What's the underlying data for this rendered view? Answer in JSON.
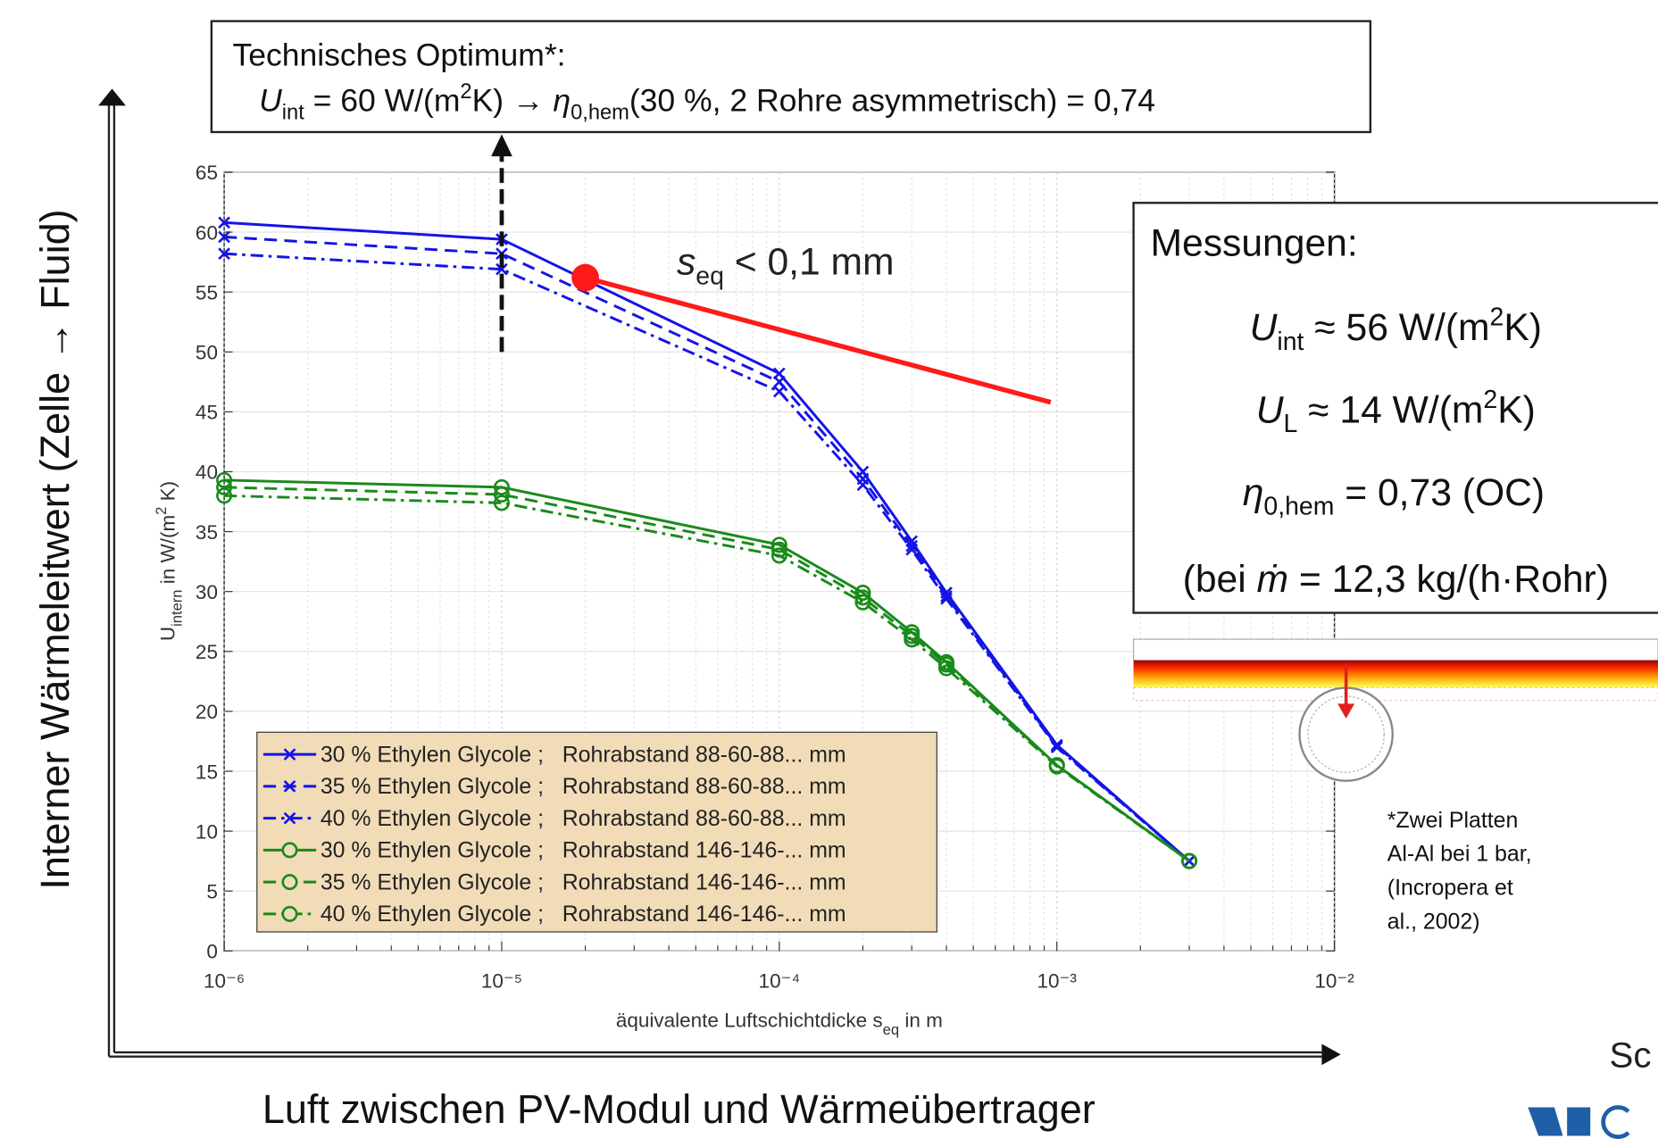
{
  "chart_data": {
    "type": "line",
    "x_scale": "log",
    "grid": true,
    "legend_position": "lower left",
    "legend_color": "#f2dcb8",
    "x_label": [
      "äquivalente Luftschichtdicke s",
      "eq",
      " in m"
    ],
    "y_label": [
      "U",
      "intern",
      " in W/(m",
      "2",
      " K)"
    ],
    "xlim": [
      1e-06,
      0.01
    ],
    "xticks": [
      {
        "value": 1e-06,
        "label": "10⁻⁶"
      },
      {
        "value": 1e-05,
        "label": "10⁻⁵"
      },
      {
        "value": 0.0001,
        "label": "10⁻⁴"
      },
      {
        "value": 0.001,
        "label": "10⁻³"
      },
      {
        "value": 0.01,
        "label": "10⁻²"
      }
    ],
    "ylim": [
      0,
      65
    ],
    "yticks": [
      0,
      5,
      10,
      15,
      20,
      25,
      30,
      35,
      40,
      45,
      50,
      55,
      60,
      65
    ],
    "x": [
      1e-06,
      1e-05,
      0.0001,
      0.0002,
      0.0003,
      0.0004,
      0.001,
      0.003
    ],
    "series": [
      {
        "name": "30 % Ethylen Glycole ;   Rohrabstand 88-60-88... mm",
        "color": "#1414e6",
        "dash": "solid",
        "marker": "x",
        "values": [
          60.8,
          59.4,
          48.2,
          40.0,
          34.2,
          29.9,
          17.2,
          7.5
        ]
      },
      {
        "name": "35 % Ethylen Glycole ;   Rohrabstand 88-60-88... mm",
        "color": "#1414e6",
        "dash": "dashed",
        "marker": "x",
        "values": [
          59.6,
          58.2,
          47.5,
          39.4,
          33.8,
          29.6,
          17.1,
          7.5
        ]
      },
      {
        "name": "40 % Ethylen Glycole ;   Rohrabstand 88-60-88... mm",
        "color": "#1414e6",
        "dash": "dashdot",
        "marker": "x",
        "values": [
          58.2,
          56.9,
          46.7,
          38.9,
          33.5,
          29.4,
          17.0,
          7.5
        ]
      },
      {
        "name": "30 % Ethylen Glycole ;   Rohrabstand 146-146-... mm",
        "color": "#1a8a1a",
        "dash": "solid",
        "marker": "o",
        "values": [
          39.3,
          38.7,
          33.9,
          29.9,
          26.6,
          24.1,
          15.5,
          7.5
        ]
      },
      {
        "name": "35 % Ethylen Glycole ;   Rohrabstand 146-146-... mm",
        "color": "#1a8a1a",
        "dash": "dashed",
        "marker": "o",
        "values": [
          38.7,
          38.1,
          33.5,
          29.5,
          26.3,
          23.9,
          15.5,
          7.5
        ]
      },
      {
        "name": "40 % Ethylen Glycole ;   Rohrabstand 146-146-... mm",
        "color": "#1a8a1a",
        "dash": "dashdot",
        "marker": "o",
        "values": [
          38.0,
          37.4,
          33.0,
          29.1,
          26.0,
          23.6,
          15.4,
          7.5
        ]
      }
    ],
    "red_annotation": {
      "x": [
        2e-05,
        0.00095
      ],
      "values": [
        56.2,
        45.8
      ],
      "color": "#ff1a1a",
      "text": [
        "s",
        "eq",
        " < 0,1 mm"
      ]
    },
    "optimum_arrow": {
      "x": 1e-05,
      "y_start": 50
    }
  },
  "outer_axes": {
    "y_label": "Interner Wärmeleitwert (Zelle → Fluid)",
    "x_label": "Luft zwischen PV-Modul und Wärmeübertrager"
  },
  "optimum_box": {
    "title": "Technisches Optimum*:",
    "line": [
      "U",
      "int",
      " = 60 W/(m",
      "2",
      "K) → ",
      "η",
      "0,hem",
      "(30 %, 2 Rohre asymmetrisch) = 0,74"
    ]
  },
  "measurement_box": {
    "title": "Messungen:",
    "line1": [
      "U",
      "int",
      " ≈ 56 W/(m",
      "2",
      "K)"
    ],
    "line2": [
      "U",
      "L",
      " ≈ 14 W/(m",
      "2",
      "K)"
    ],
    "line3": [
      "η",
      "0,hem",
      " = 0,73 (OC)"
    ],
    "line4": [
      "(bei ",
      "ṁ",
      " = 12,3 kg/(h·Rohr)"
    ]
  },
  "footnote": [
    "*Zwei Platten",
    "Al-Al bei 1 bar,",
    "(Incropera et",
    "al., 2002)"
  ],
  "corner_text": "Sc"
}
